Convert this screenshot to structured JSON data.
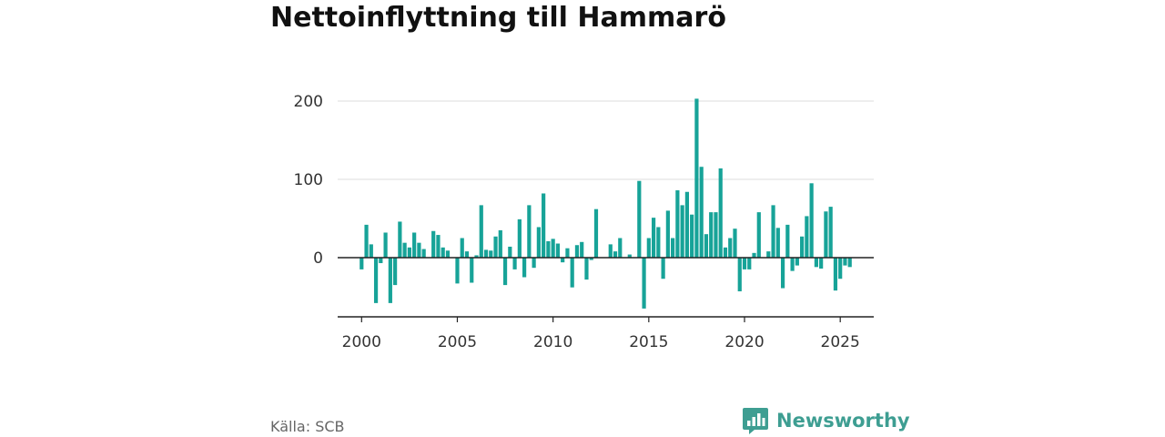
{
  "title": "Nettoinflyttning till Hammarö",
  "source": "Källa: SCB",
  "brand": {
    "name": "Newsworthy",
    "color": "#3e9e92"
  },
  "chart_data": {
    "type": "bar",
    "title": "Nettoinflyttning till Hammarö",
    "xlabel": "",
    "ylabel": "",
    "bar_color": "#17a398",
    "grid": "horizontal",
    "ylim": [
      -75,
      205
    ],
    "xlim": [
      1998.75,
      2026.75
    ],
    "x_ticks": [
      "2000",
      "2005",
      "2010",
      "2015",
      "2020",
      "2025"
    ],
    "y_ticks": [
      "0",
      "100",
      "200"
    ],
    "period": "quarterly",
    "x": [
      "2000 K1",
      "2000 K2",
      "2000 K3",
      "2000 K4",
      "2001 K1",
      "2001 K2",
      "2001 K3",
      "2001 K4",
      "2002 K1",
      "2002 K2",
      "2002 K3",
      "2002 K4",
      "2003 K1",
      "2003 K2",
      "2003 K3",
      "2003 K4",
      "2004 K1",
      "2004 K2",
      "2004 K3",
      "2004 K4",
      "2005 K1",
      "2005 K2",
      "2005 K3",
      "2005 K4",
      "2006 K1",
      "2006 K2",
      "2006 K3",
      "2006 K4",
      "2007 K1",
      "2007 K2",
      "2007 K3",
      "2007 K4",
      "2008 K1",
      "2008 K2",
      "2008 K3",
      "2008 K4",
      "2009 K1",
      "2009 K2",
      "2009 K3",
      "2009 K4",
      "2010 K1",
      "2010 K2",
      "2010 K3",
      "2010 K4",
      "2011 K1",
      "2011 K2",
      "2011 K3",
      "2011 K4",
      "2012 K1",
      "2012 K2",
      "2012 K3",
      "2012 K4",
      "2013 K1",
      "2013 K2",
      "2013 K3",
      "2013 K4",
      "2014 K1",
      "2014 K2",
      "2014 K3",
      "2014 K4",
      "2015 K1",
      "2015 K2",
      "2015 K3",
      "2015 K4",
      "2016 K1",
      "2016 K2",
      "2016 K3",
      "2016 K4",
      "2017 K1",
      "2017 K2",
      "2017 K3",
      "2017 K4",
      "2018 K1",
      "2018 K2",
      "2018 K3",
      "2018 K4",
      "2019 K1",
      "2019 K2",
      "2019 K3",
      "2019 K4",
      "2020 K1",
      "2020 K2",
      "2020 K3",
      "2020 K4",
      "2021 K1",
      "2021 K2",
      "2021 K3",
      "2021 K4",
      "2022 K1",
      "2022 K2",
      "2022 K3",
      "2022 K4",
      "2023 K1",
      "2023 K2",
      "2023 K3",
      "2023 K4",
      "2024 K1",
      "2024 K2",
      "2024 K3",
      "2024 K4",
      "2025 K1",
      "2025 K2",
      "2025 K3"
    ],
    "values": [
      -15,
      42,
      17,
      -58,
      -7,
      32,
      -58,
      -35,
      46,
      19,
      13,
      32,
      19,
      11,
      0,
      34,
      29,
      13,
      9,
      0,
      -33,
      25,
      8,
      -32,
      3,
      67,
      10,
      9,
      27,
      35,
      -35,
      14,
      -15,
      49,
      -25,
      67,
      -13,
      39,
      82,
      21,
      24,
      18,
      -6,
      12,
      -38,
      16,
      20,
      -28,
      -3,
      62,
      0,
      0,
      17,
      8,
      25,
      0,
      4,
      0,
      98,
      -65,
      25,
      51,
      39,
      -27,
      60,
      25,
      86,
      67,
      84,
      55,
      203,
      116,
      30,
      58,
      58,
      114,
      13,
      25,
      37,
      -43,
      -15,
      -15,
      6,
      58,
      0,
      8,
      67,
      38,
      -39,
      42,
      -17,
      -10,
      27,
      53,
      95,
      -12,
      -14,
      59,
      65,
      -42,
      -27,
      -10,
      -12
    ]
  }
}
